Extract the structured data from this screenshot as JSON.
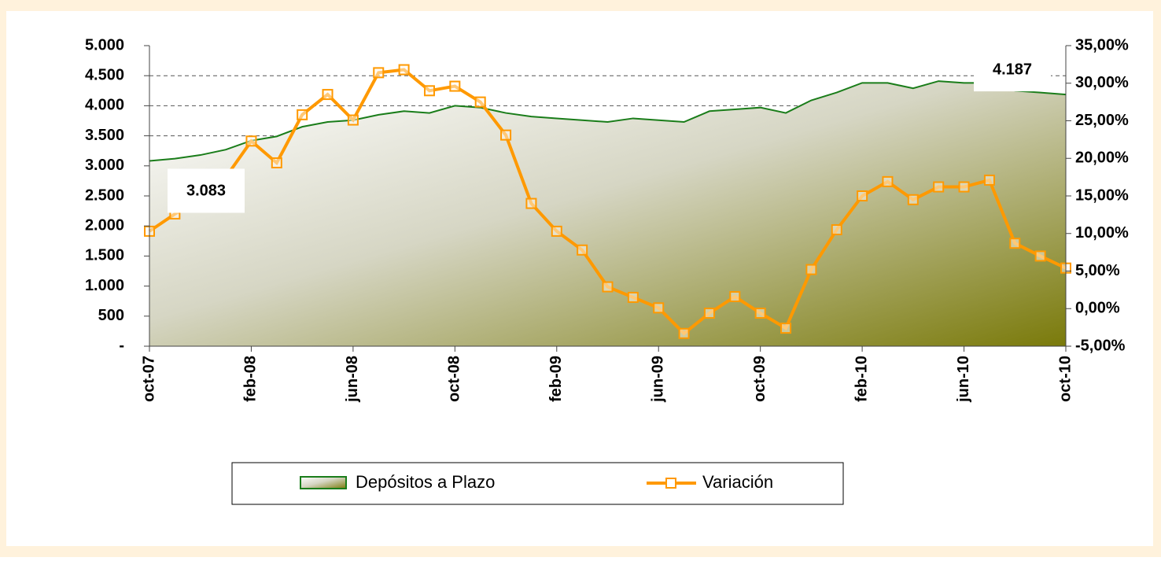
{
  "chart_data": {
    "type": "area-line",
    "categories": [
      "oct-07",
      null,
      null,
      null,
      "feb-08",
      null,
      null,
      null,
      "jun-08",
      null,
      null,
      null,
      "oct-08",
      null,
      null,
      null,
      "feb-09",
      null,
      null,
      null,
      "jun-09",
      null,
      null,
      null,
      "oct-09",
      null,
      null,
      null,
      "feb-10",
      null,
      null,
      null,
      "jun-10",
      null,
      null,
      null,
      "oct-10"
    ],
    "series": [
      {
        "name": "Depósitos a Plazo",
        "type": "area",
        "color": "#1a7d1a",
        "values": [
          3083,
          3120,
          3180,
          3270,
          3420,
          3490,
          3650,
          3730,
          3760,
          3850,
          3910,
          3880,
          4000,
          3970,
          3880,
          3820,
          3790,
          3760,
          3730,
          3790,
          3760,
          3730,
          3910,
          3940,
          3970,
          3880,
          4090,
          4220,
          4380,
          4380,
          4290,
          4410,
          4380,
          4380,
          4250,
          4220,
          4187
        ],
        "value_labels": [
          "3.083",
          null,
          null,
          null,
          null,
          null,
          null,
          null,
          null,
          null,
          null,
          null,
          null,
          null,
          null,
          null,
          null,
          null,
          null,
          null,
          null,
          null,
          null,
          null,
          null,
          null,
          null,
          null,
          null,
          null,
          null,
          null,
          null,
          null,
          null,
          null,
          "4.187"
        ]
      },
      {
        "name": "Variación",
        "type": "line",
        "color": "#ff9900",
        "axis": "y2",
        "values": [
          10.3,
          12.6,
          14.5,
          17.5,
          22.3,
          19.4,
          25.8,
          28.5,
          25.1,
          31.4,
          31.8,
          29.0,
          29.6,
          27.5,
          23.1,
          14.0,
          10.3,
          7.8,
          2.9,
          1.5,
          0.1,
          -3.3,
          -0.6,
          1.6,
          -0.6,
          -2.6,
          5.2,
          10.5,
          15.0,
          16.9,
          14.5,
          16.2,
          16.2,
          17.1,
          8.7,
          7.0,
          5.4
        ]
      }
    ],
    "ylim": [
      0,
      5000
    ],
    "yticks": [
      {
        "value": 0,
        "label": "-"
      },
      500,
      {
        "value": 1000,
        "label": "1.000"
      },
      {
        "value": 1500,
        "label": "1.500"
      },
      {
        "value": 2000,
        "label": "2.000"
      },
      {
        "value": 2500,
        "label": "2.500"
      },
      {
        "value": 3000,
        "label": "3.000"
      },
      {
        "value": 3500,
        "label": "3.500"
      },
      {
        "value": 4000,
        "label": "4.000"
      },
      {
        "value": 4500,
        "label": "4.500"
      },
      {
        "value": 5000,
        "label": "5.000"
      }
    ],
    "y2lim": [
      -5,
      35
    ],
    "y2ticks": [
      {
        "value": -5,
        "label": "-5,00%"
      },
      {
        "value": 0,
        "label": "0,00%"
      },
      {
        "value": 5,
        "label": "5,00%"
      },
      {
        "value": 10,
        "label": "10,00%"
      },
      {
        "value": 15,
        "label": "15,00%"
      },
      {
        "value": 20,
        "label": "20,00%"
      },
      {
        "value": 25,
        "label": "25,00%"
      },
      {
        "value": 30,
        "label": "30,00%"
      },
      {
        "value": 35,
        "label": "35,00%"
      }
    ],
    "grid": true
  }
}
